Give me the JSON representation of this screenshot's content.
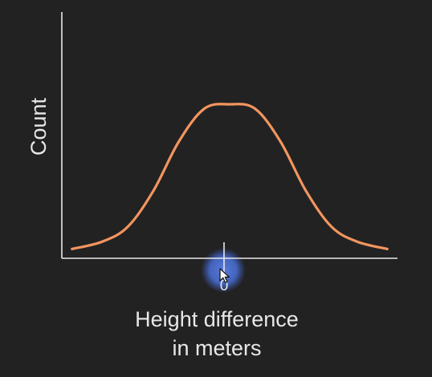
{
  "chart_data": {
    "type": "line",
    "title": "",
    "xlabel_lines": [
      "Height difference",
      "in meters"
    ],
    "ylabel": "Count",
    "x_ticks": [
      "0"
    ],
    "xlim": [
      -3.3,
      3.3
    ],
    "grid": false,
    "legend": "none",
    "series": [
      {
        "color": "#f2955f",
        "x": [
          -3.1,
          -2.5,
          -2.0,
          -1.5,
          -1.0,
          -0.5,
          0.0,
          0.5,
          1.0,
          1.5,
          2.0,
          2.5,
          3.1
        ],
        "y": [
          0.03,
          0.08,
          0.18,
          0.42,
          0.75,
          0.97,
          1.0,
          0.97,
          0.75,
          0.42,
          0.18,
          0.08,
          0.03
        ]
      }
    ]
  },
  "cursor_icon": "mouse-pointer-icon",
  "highlight_color": "#4a6fd8"
}
